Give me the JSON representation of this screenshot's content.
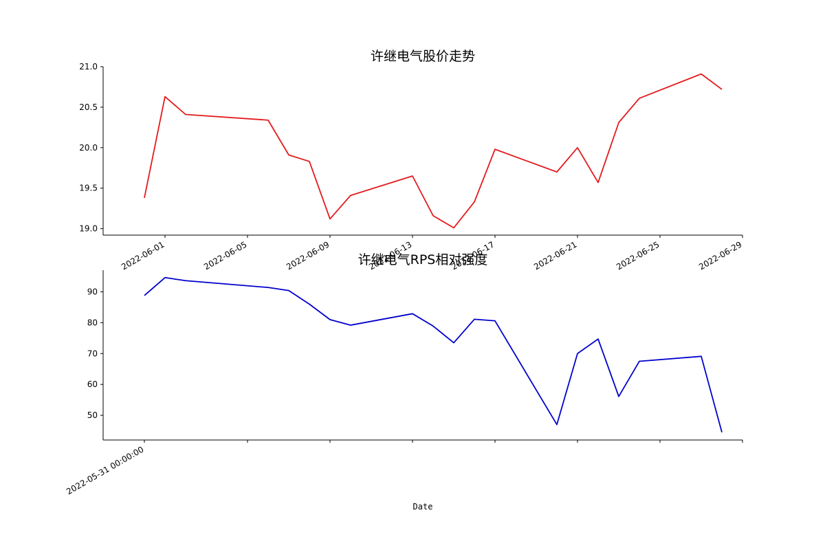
{
  "chart_data": [
    {
      "type": "line",
      "title": "许继电气股价走势",
      "xlabel": "",
      "ylabel": "",
      "ylim": [
        18.92,
        21.0
      ],
      "yticks": [
        19.0,
        19.5,
        20.0,
        20.5,
        21.0
      ],
      "ytick_labels": [
        "19.0",
        "19.5",
        "20.0",
        "20.5",
        "21.0"
      ],
      "xlim": [
        "2022-05-29",
        "2022-06-29"
      ],
      "xticks": [
        "2022-06-01",
        "2022-06-05",
        "2022-06-09",
        "2022-06-13",
        "2022-06-17",
        "2022-06-21",
        "2022-06-25",
        "2022-06-29"
      ],
      "xtick_labels": [
        "2022-06-01",
        "2022-06-05",
        "2022-06-09",
        "2022-06-13",
        "2022-06-17",
        "2022-06-21",
        "2022-06-25",
        "2022-06-29"
      ],
      "grid": false,
      "color": "#e31a1c",
      "series": [
        {
          "x": [
            "2022-05-31",
            "2022-06-01",
            "2022-06-02",
            "2022-06-06",
            "2022-06-07",
            "2022-06-08",
            "2022-06-09",
            "2022-06-10",
            "2022-06-13",
            "2022-06-14",
            "2022-06-15",
            "2022-06-16",
            "2022-06-17",
            "2022-06-20",
            "2022-06-21",
            "2022-06-22",
            "2022-06-23",
            "2022-06-24",
            "2022-06-27",
            "2022-06-28"
          ],
          "values": [
            19.38,
            20.63,
            20.41,
            20.34,
            19.91,
            19.83,
            19.12,
            19.41,
            19.65,
            19.16,
            19.01,
            19.33,
            19.98,
            19.7,
            20.0,
            19.57,
            20.31,
            20.61,
            20.91,
            20.72
          ]
        }
      ]
    },
    {
      "type": "line",
      "title": "许继电气RPS相对强度",
      "xlabel": "Date",
      "ylabel": "",
      "ylim": [
        42,
        97
      ],
      "yticks": [
        50,
        60,
        70,
        80,
        90
      ],
      "ytick_labels": [
        "50",
        "60",
        "70",
        "80",
        "90"
      ],
      "xlim": [
        "2022-05-29",
        "2022-06-29"
      ],
      "xticks": [
        "2022-05-31",
        "2022-06-05",
        "2022-06-09",
        "2022-06-13",
        "2022-06-17",
        "2022-06-21",
        "2022-06-25",
        "2022-06-29"
      ],
      "xtick_labels": [
        "2022-05-31 00:00:00",
        "",
        "",
        "",
        "",
        "",
        "",
        ""
      ],
      "grid": false,
      "color": "#0000cc",
      "series": [
        {
          "x": [
            "2022-05-31",
            "2022-06-01",
            "2022-06-02",
            "2022-06-06",
            "2022-06-07",
            "2022-06-08",
            "2022-06-09",
            "2022-06-10",
            "2022-06-13",
            "2022-06-14",
            "2022-06-15",
            "2022-06-16",
            "2022-06-17",
            "2022-06-20",
            "2022-06-21",
            "2022-06-22",
            "2022-06-23",
            "2022-06-24",
            "2022-06-27",
            "2022-06-28"
          ],
          "values": [
            88.8,
            94.6,
            93.6,
            91.4,
            90.4,
            86,
            81,
            79.2,
            82.9,
            78.9,
            73.5,
            81.1,
            80.6,
            47,
            70,
            74.7,
            56.1,
            67.5,
            69.1,
            44.5
          ]
        }
      ]
    }
  ]
}
